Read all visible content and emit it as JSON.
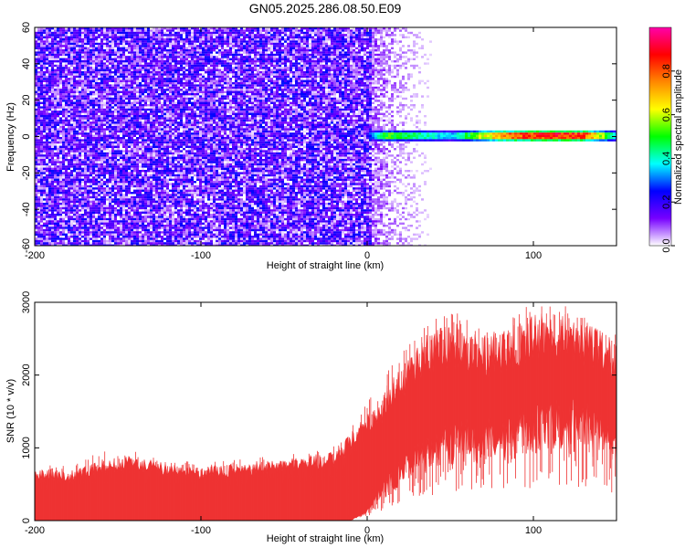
{
  "figure": {
    "title": "GN05.2025.286.08.50.E09"
  },
  "chart_data": [
    {
      "type": "heatmap",
      "xlabel": "Height of straight line (km)",
      "ylabel": "Frequency (Hz)",
      "xlim": [
        -200,
        150
      ],
      "ylim": [
        -60,
        60
      ],
      "x_ticks": [
        -200,
        -100,
        0,
        100
      ],
      "y_ticks": [
        -60,
        -40,
        -20,
        0,
        20,
        40,
        60
      ],
      "colorbar": {
        "label": "Normalized spectral amplitude",
        "range": [
          0,
          1
        ],
        "ticks": [
          "0.0",
          "0.2",
          "0.4",
          "0.6",
          "0.8"
        ],
        "colormap": [
          "#ffffff",
          "#7700ff",
          "#0000ff",
          "#00ffff",
          "#00ff00",
          "#ffff00",
          "#ff8800",
          "#ff0000",
          "#ff00aa"
        ]
      },
      "regions": [
        {
          "x_range": [
            -200,
            2
          ],
          "y_range": [
            -60,
            60
          ],
          "level": 0.2,
          "description_color": "#7a20f0"
        },
        {
          "x_range": [
            2,
            40
          ],
          "y_range": [
            -60,
            60
          ],
          "level": 0.05
        },
        {
          "x_range": [
            0,
            150
          ],
          "y_range": [
            -1,
            3
          ],
          "level": 0.85
        }
      ],
      "band_profile": [
        {
          "x": 0,
          "amp": 0.25
        },
        {
          "x": 10,
          "amp": 0.55
        },
        {
          "x": 30,
          "amp": 0.45
        },
        {
          "x": 50,
          "amp": 0.35
        },
        {
          "x": 70,
          "amp": 0.65
        },
        {
          "x": 90,
          "amp": 0.85
        },
        {
          "x": 110,
          "amp": 0.9
        },
        {
          "x": 130,
          "amp": 0.85
        },
        {
          "x": 145,
          "amp": 0.5
        },
        {
          "x": 150,
          "amp": 0.3
        }
      ]
    },
    {
      "type": "area",
      "xlabel": "Height of straight line (km)",
      "ylabel": "SNR (10 * v/v)",
      "xlim": [
        -200,
        150
      ],
      "ylim": [
        0,
        3000
      ],
      "x_ticks": [
        -200,
        -100,
        0,
        100
      ],
      "y_ticks": [
        0,
        1000,
        2000,
        3000
      ],
      "color": "#ee3333",
      "envelope": {
        "x": [
          -200,
          -180,
          -160,
          -140,
          -120,
          -100,
          -80,
          -60,
          -40,
          -20,
          -10,
          0,
          10,
          20,
          30,
          40,
          50,
          60,
          70,
          80,
          90,
          100,
          110,
          120,
          130,
          140,
          150
        ],
        "upper": [
          700,
          650,
          800,
          850,
          750,
          700,
          750,
          800,
          850,
          900,
          1150,
          1400,
          1700,
          2050,
          2350,
          2550,
          2600,
          2550,
          2450,
          2500,
          2600,
          2700,
          2750,
          2750,
          2650,
          2500,
          2350
        ],
        "lower": [
          0,
          0,
          0,
          0,
          0,
          0,
          0,
          0,
          0,
          0,
          0,
          150,
          500,
          800,
          1000,
          1150,
          1250,
          1300,
          1300,
          1350,
          1400,
          1450,
          1500,
          1550,
          1500,
          1400,
          1250
        ],
        "peaks": [
          800,
          750,
          950,
          950,
          850,
          800,
          850,
          900,
          950,
          1050,
          1350,
          1650,
          2000,
          2400,
          2650,
          2800,
          2950,
          2800,
          2650,
          2750,
          2850,
          3000,
          3000,
          2950,
          2900,
          2700,
          2550
        ]
      }
    }
  ]
}
